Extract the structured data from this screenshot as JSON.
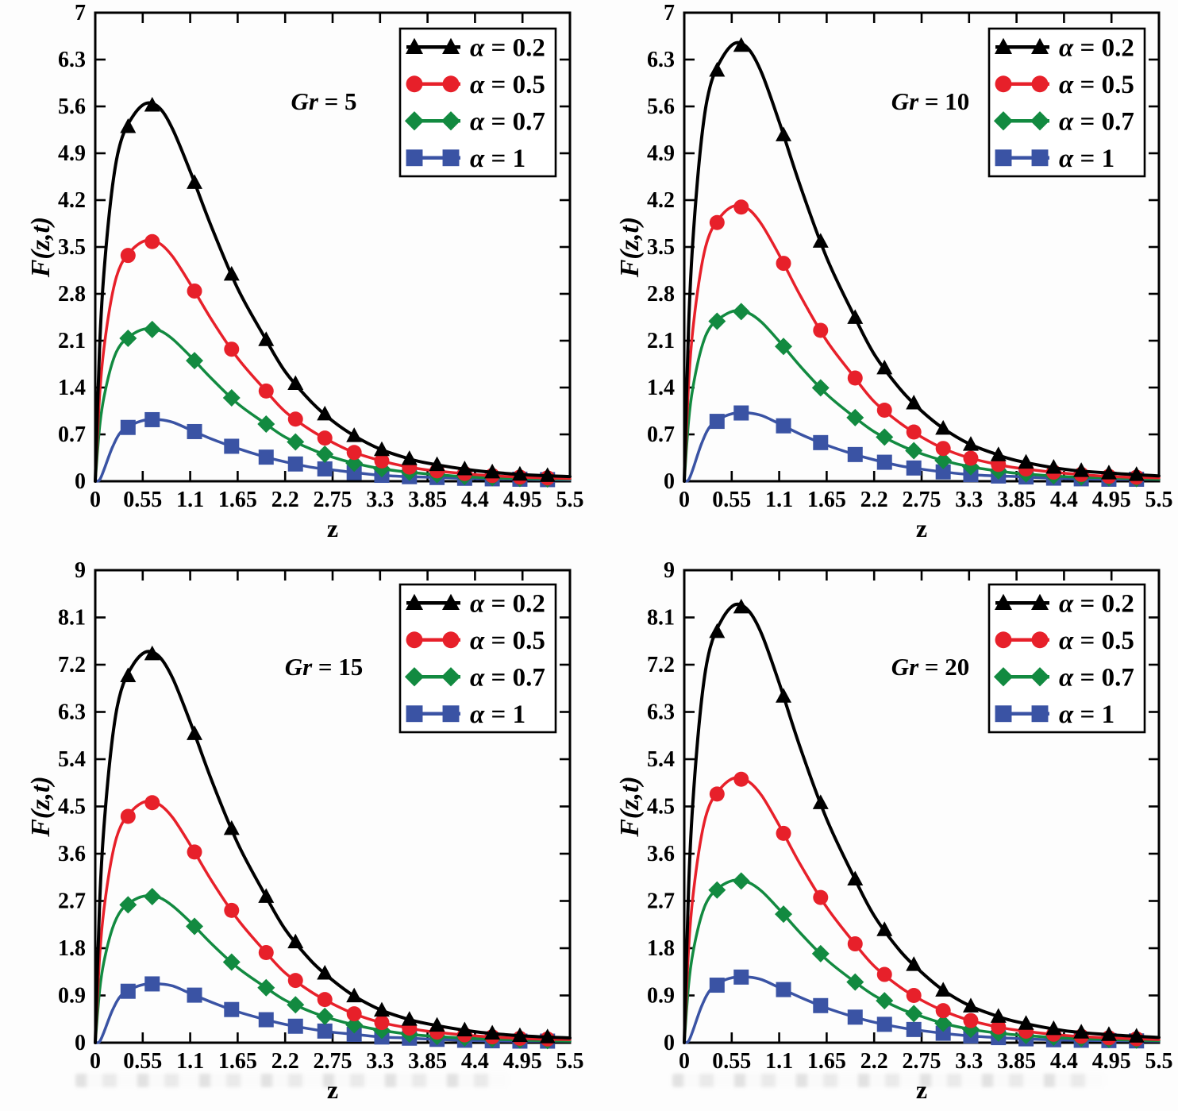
{
  "figure": {
    "description_labels": {
      "x_axis": "z",
      "y_axis": "F(z,t)"
    }
  },
  "chart_data": {
    "type": "line",
    "x": [
      0,
      0.05,
      0.1,
      0.2,
      0.3,
      0.45,
      0.6,
      0.75,
      0.9,
      1.1,
      1.35,
      1.65,
      1.95,
      2.2,
      2.5,
      2.75,
      3.0,
      3.3,
      3.6,
      3.85,
      4.4,
      4.95,
      5.5
    ],
    "marker_x": [
      0.38,
      0.66,
      1.15,
      1.58,
      1.98,
      2.32,
      2.66,
      3.0,
      3.32,
      3.64,
      3.96,
      4.28,
      4.6,
      4.92,
      5.24
    ],
    "legend": [
      {
        "label": "α = 0.2",
        "color": "#000000",
        "marker": "triangle"
      },
      {
        "label": "α = 0.5",
        "color": "#e7202a",
        "marker": "circle"
      },
      {
        "label": "α = 0.7",
        "color": "#128a40",
        "marker": "diamond"
      },
      {
        "label": "α = 1",
        "color": "#3a53a4",
        "marker": "square"
      }
    ],
    "legend_position": "top-right",
    "grid": false,
    "panels": [
      {
        "title": "Gr = 5",
        "xlabel": "z",
        "ylabel": "F(z,t)",
        "xlim": [
          0,
          5.5
        ],
        "ylim": [
          0,
          7
        ],
        "xtick_labels": [
          "0",
          "0.55",
          "1.1",
          "1.65",
          "2.2",
          "2.75",
          "3.3",
          "3.85",
          "4.4",
          "4.95",
          "5.5"
        ],
        "ytick_labels": [
          "0",
          "0.7",
          "1.4",
          "2.1",
          "2.8",
          "3.5",
          "4.2",
          "4.9",
          "5.6",
          "6.3",
          "7"
        ],
        "series": [
          {
            "name": "α = 0.2",
            "values": [
              0,
              1.98,
              3.11,
              4.41,
              5.09,
              5.48,
              5.65,
              5.57,
              5.25,
              4.63,
              3.79,
              2.88,
              2.18,
              1.64,
              1.19,
              0.9,
              0.68,
              0.48,
              0.35,
              0.27,
              0.16,
              0.1,
              0.07
            ]
          },
          {
            "name": "α = 0.5",
            "values": [
              0,
              1.26,
              1.98,
              2.81,
              3.24,
              3.49,
              3.6,
              3.55,
              3.35,
              2.95,
              2.41,
              1.84,
              1.39,
              1.04,
              0.76,
              0.58,
              0.43,
              0.31,
              0.22,
              0.17,
              0.1,
              0.06,
              0.04
            ]
          },
          {
            "name": "α = 0.7",
            "values": [
              0,
              0.8,
              1.25,
              1.78,
              2.05,
              2.21,
              2.28,
              2.25,
              2.12,
              1.87,
              1.53,
              1.16,
              0.88,
              0.66,
              0.48,
              0.36,
              0.27,
              0.19,
              0.14,
              0.11,
              0.06,
              0.04,
              0.03
            ]
          },
          {
            "name": "α = 1",
            "values": [
              0,
              0.02,
              0.17,
              0.51,
              0.74,
              0.86,
              0.92,
              0.92,
              0.88,
              0.77,
              0.63,
              0.49,
              0.37,
              0.29,
              0.21,
              0.17,
              0.13,
              0.09,
              0.07,
              0.06,
              0.04,
              0.03,
              0.02
            ]
          }
        ]
      },
      {
        "title": "Gr = 10",
        "xlabel": "z",
        "ylabel": "F(z,t)",
        "xlim": [
          0,
          5.5
        ],
        "ylim": [
          0,
          7
        ],
        "xtick_labels": [
          "0",
          "0.55",
          "1.1",
          "1.65",
          "2.2",
          "2.75",
          "3.3",
          "3.85",
          "4.4",
          "4.95",
          "5.5"
        ],
        "ytick_labels": [
          "0",
          "0.7",
          "1.4",
          "2.1",
          "2.8",
          "3.5",
          "4.2",
          "4.9",
          "5.6",
          "6.3",
          "7"
        ],
        "series": [
          {
            "name": "α = 0.2",
            "values": [
              0,
              2.29,
              3.6,
              5.11,
              5.9,
              6.35,
              6.55,
              6.45,
              6.09,
              5.37,
              4.39,
              3.34,
              2.52,
              1.9,
              1.38,
              1.05,
              0.79,
              0.56,
              0.41,
              0.31,
              0.18,
              0.12,
              0.08
            ]
          },
          {
            "name": "α = 0.5",
            "values": [
              0,
              1.44,
              2.27,
              3.21,
              3.71,
              4.0,
              4.12,
              4.06,
              3.83,
              3.38,
              2.76,
              2.1,
              1.59,
              1.19,
              0.87,
              0.66,
              0.49,
              0.35,
              0.26,
              0.2,
              0.12,
              0.07,
              0.05
            ]
          },
          {
            "name": "α = 0.7",
            "values": [
              0,
              0.89,
              1.4,
              1.99,
              2.3,
              2.47,
              2.55,
              2.51,
              2.37,
              2.09,
              1.71,
              1.3,
              0.98,
              0.74,
              0.54,
              0.41,
              0.31,
              0.22,
              0.16,
              0.12,
              0.07,
              0.05,
              0.03
            ]
          },
          {
            "name": "α = 1",
            "values": [
              0,
              0.02,
              0.18,
              0.56,
              0.82,
              0.96,
              1.02,
              1.02,
              0.98,
              0.86,
              0.7,
              0.54,
              0.41,
              0.32,
              0.23,
              0.18,
              0.14,
              0.1,
              0.08,
              0.07,
              0.04,
              0.03,
              0.03
            ]
          }
        ]
      },
      {
        "title": "Gr = 15",
        "xlabel": "z",
        "ylabel": "F(z,t)",
        "xlim": [
          0,
          5.5
        ],
        "ylim": [
          0,
          9
        ],
        "xtick_labels": [
          "0",
          "0.55",
          "1.1",
          "1.65",
          "2.2",
          "2.75",
          "3.3",
          "3.85",
          "4.4",
          "4.95",
          "5.5"
        ],
        "ytick_labels": [
          "0",
          "0.9",
          "1.8",
          "2.7",
          "3.6",
          "4.5",
          "5.4",
          "6.3",
          "7.2",
          "8.1",
          "9"
        ],
        "series": [
          {
            "name": "α = 0.2",
            "values": [
              0,
              2.61,
              4.1,
              5.81,
              6.71,
              7.23,
              7.45,
              7.34,
              6.93,
              6.11,
              4.99,
              3.8,
              2.87,
              2.16,
              1.56,
              1.19,
              0.89,
              0.63,
              0.46,
              0.36,
              0.21,
              0.13,
              0.09
            ]
          },
          {
            "name": "α = 0.5",
            "values": [
              0,
              1.61,
              2.53,
              3.59,
              4.14,
              4.46,
              4.6,
              4.53,
              4.28,
              3.77,
              3.08,
              2.35,
              1.77,
              1.33,
              0.97,
              0.74,
              0.55,
              0.39,
              0.29,
              0.22,
              0.13,
              0.08,
              0.06
            ]
          },
          {
            "name": "α = 0.7",
            "values": [
              0,
              0.98,
              1.54,
              2.18,
              2.52,
              2.72,
              2.8,
              2.76,
              2.6,
              2.3,
              1.88,
              1.43,
              1.08,
              0.81,
              0.59,
              0.45,
              0.34,
              0.24,
              0.17,
              0.13,
              0.08,
              0.05,
              0.03
            ]
          },
          {
            "name": "α = 1",
            "values": [
              0,
              0.02,
              0.2,
              0.62,
              0.9,
              1.05,
              1.12,
              1.12,
              1.08,
              0.94,
              0.77,
              0.59,
              0.45,
              0.35,
              0.26,
              0.2,
              0.16,
              0.11,
              0.09,
              0.07,
              0.04,
              0.03,
              0.03
            ]
          }
        ]
      },
      {
        "title": "Gr = 20",
        "xlabel": "z",
        "ylabel": "F(z,t)",
        "xlim": [
          0,
          5.5
        ],
        "ylim": [
          0,
          9
        ],
        "xtick_labels": [
          "0",
          "0.55",
          "1.1",
          "1.65",
          "2.2",
          "2.75",
          "3.3",
          "3.85",
          "4.4",
          "4.95",
          "5.5"
        ],
        "ytick_labels": [
          "0",
          "0.9",
          "1.8",
          "2.7",
          "3.6",
          "4.5",
          "5.4",
          "6.3",
          "7.2",
          "8.1",
          "9"
        ],
        "series": [
          {
            "name": "α = 0.2",
            "values": [
              0,
              2.92,
              4.59,
              6.51,
              7.52,
              8.1,
              8.35,
              8.22,
              7.77,
              6.85,
              5.59,
              4.26,
              3.21,
              2.42,
              1.75,
              1.34,
              1.0,
              0.71,
              0.52,
              0.4,
              0.23,
              0.15,
              0.1
            ]
          },
          {
            "name": "α = 0.5",
            "values": [
              0,
              1.77,
              2.78,
              3.94,
              4.55,
              4.9,
              5.05,
              4.97,
              4.7,
              4.14,
              3.38,
              2.58,
              1.94,
              1.46,
              1.06,
              0.81,
              0.61,
              0.43,
              0.31,
              0.24,
              0.14,
              0.09,
              0.06
            ]
          },
          {
            "name": "α = 0.7",
            "values": [
              0,
              1.09,
              1.71,
              2.42,
              2.79,
              3.01,
              3.1,
              3.05,
              2.88,
              2.54,
              2.08,
              1.58,
              1.19,
              0.9,
              0.65,
              0.5,
              0.37,
              0.26,
              0.19,
              0.15,
              0.09,
              0.06,
              0.04
            ]
          },
          {
            "name": "α = 1",
            "values": [
              0,
              0.03,
              0.23,
              0.69,
              1.0,
              1.18,
              1.25,
              1.25,
              1.2,
              1.05,
              0.86,
              0.66,
              0.5,
              0.39,
              0.29,
              0.23,
              0.18,
              0.13,
              0.1,
              0.08,
              0.05,
              0.04,
              0.03
            ]
          }
        ]
      }
    ]
  }
}
